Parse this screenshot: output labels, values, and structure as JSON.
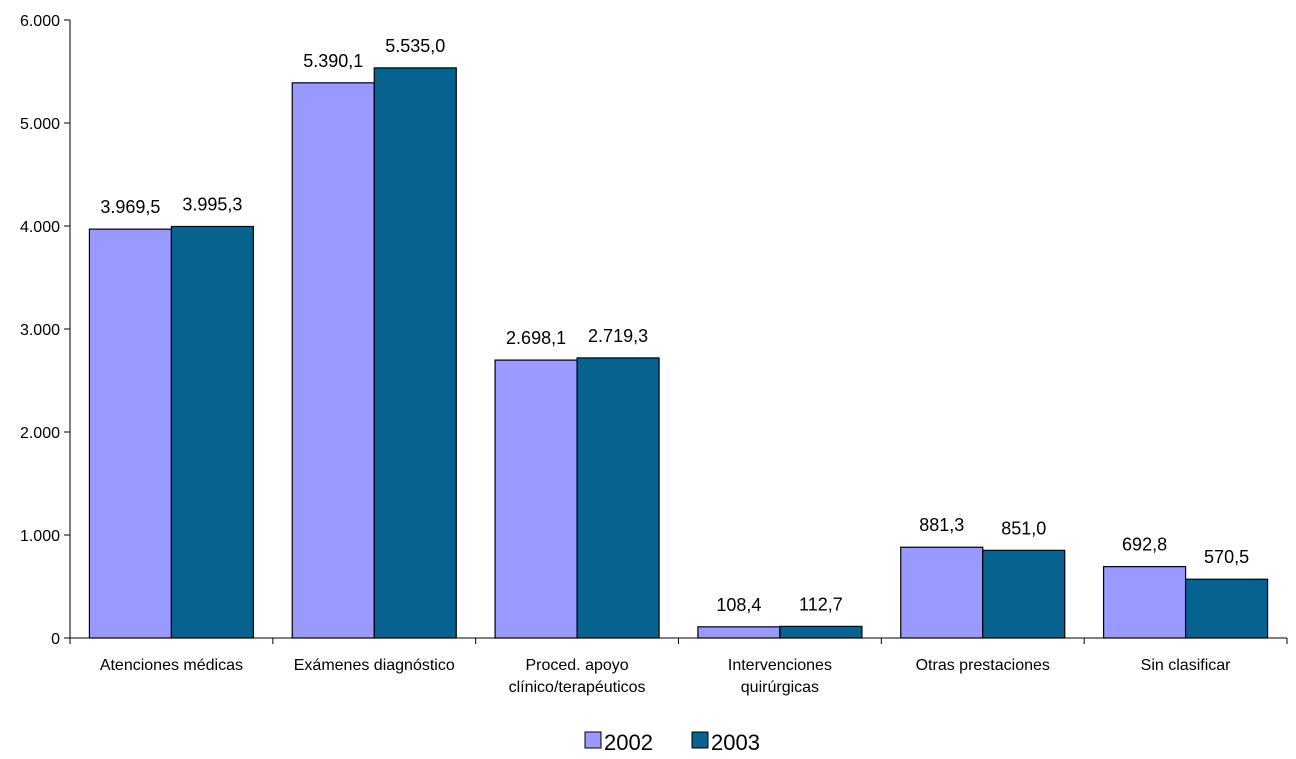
{
  "chart_data": {
    "type": "bar",
    "title": "",
    "xlabel": "",
    "ylabel": "",
    "ylim": [
      0,
      6000
    ],
    "yticks": [
      0,
      1000,
      2000,
      3000,
      4000,
      5000,
      6000
    ],
    "ytick_labels": [
      "0",
      "1.000",
      "2.000",
      "3.000",
      "4.000",
      "5.000",
      "6.000"
    ],
    "categories": [
      [
        "Atenciones médicas"
      ],
      [
        "Exámenes diagnóstico"
      ],
      [
        "Proced. apoyo",
        "clínico/terapéuticos"
      ],
      [
        "Intervenciones",
        "quirúrgicas"
      ],
      [
        "Otras prestaciones"
      ],
      [
        "Sin clasificar"
      ]
    ],
    "series": [
      {
        "name": "2002",
        "color": "#9999ff",
        "values": [
          3969.5,
          5390.1,
          2698.1,
          108.4,
          881.3,
          692.8
        ],
        "labels": [
          "3.969,5",
          "5.390,1",
          "2.698,1",
          "108,4",
          "881,3",
          "692,8"
        ]
      },
      {
        "name": "2003",
        "color": "#08628f",
        "values": [
          3995.3,
          5535.0,
          2719.3,
          112.7,
          851.0,
          570.5
        ],
        "labels": [
          "3.995,3",
          "5.535,0",
          "2.719,3",
          "112,7",
          "851,0",
          "570,5"
        ]
      }
    ],
    "grid": false,
    "legend_position": "bottom"
  }
}
